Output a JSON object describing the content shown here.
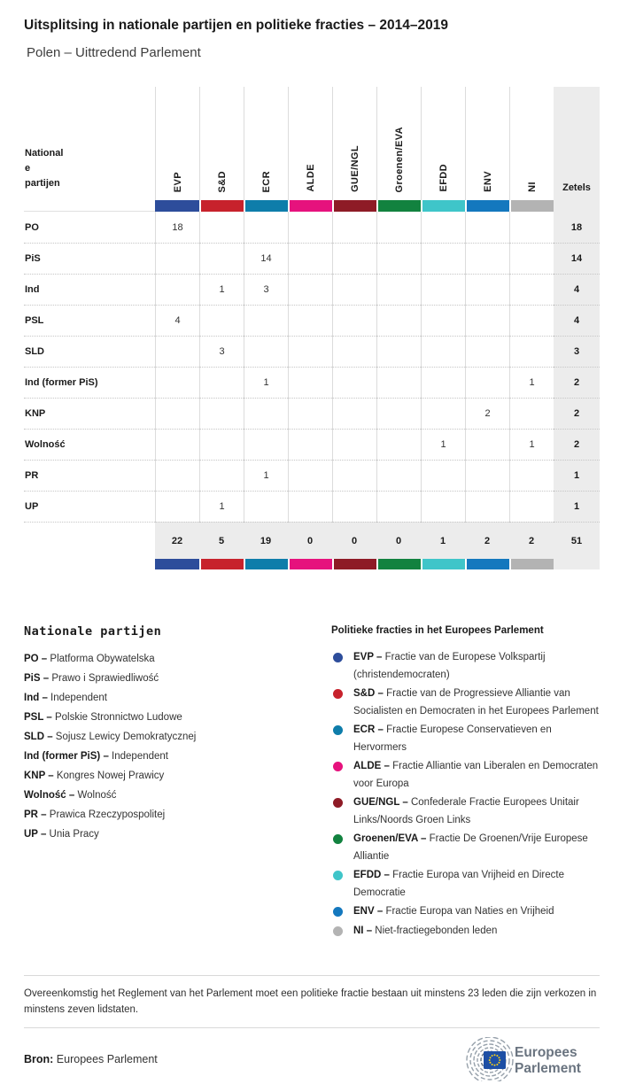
{
  "title": "Uitsplitsing in nationale partijen en politieke fracties – 2014–2019",
  "subtitle": "Polen – Uittredend Parlement",
  "table": {
    "row_header": "National\ne\npartijen",
    "seats_header": "Zetels"
  },
  "chart_data": {
    "type": "table",
    "title": "Uitsplitsing in nationale partijen en politieke fracties – 2014–2019",
    "subtitle": "Polen – Uittredend Parlement",
    "group_columns": [
      {
        "label": "EVP",
        "color": "#2d4d9b"
      },
      {
        "label": "S&D",
        "color": "#c7222c"
      },
      {
        "label": "ECR",
        "color": "#0e7daa"
      },
      {
        "label": "ALDE",
        "color": "#e6127d"
      },
      {
        "label": "GUE/NGL",
        "color": "#8e1b26"
      },
      {
        "label": "Groenen/EVA",
        "color": "#12823f"
      },
      {
        "label": "EFDD",
        "color": "#3fc5c9"
      },
      {
        "label": "ENV",
        "color": "#1478be"
      },
      {
        "label": "NI",
        "color": "#b3b3b3"
      }
    ],
    "seats_column": "Zetels",
    "rows": [
      {
        "party": "PO",
        "values": [
          18,
          "",
          "",
          "",
          "",
          "",
          "",
          "",
          ""
        ],
        "seats": 18
      },
      {
        "party": "PiS",
        "values": [
          "",
          "",
          14,
          "",
          "",
          "",
          "",
          "",
          ""
        ],
        "seats": 14
      },
      {
        "party": "Ind",
        "values": [
          "",
          1,
          3,
          "",
          "",
          "",
          "",
          "",
          ""
        ],
        "seats": 4
      },
      {
        "party": "PSL",
        "values": [
          4,
          "",
          "",
          "",
          "",
          "",
          "",
          "",
          ""
        ],
        "seats": 4
      },
      {
        "party": "SLD",
        "values": [
          "",
          3,
          "",
          "",
          "",
          "",
          "",
          "",
          ""
        ],
        "seats": 3
      },
      {
        "party": "Ind (former PiS)",
        "values": [
          "",
          "",
          1,
          "",
          "",
          "",
          "",
          "",
          1
        ],
        "seats": 2
      },
      {
        "party": "KNP",
        "values": [
          "",
          "",
          "",
          "",
          "",
          "",
          "",
          2,
          ""
        ],
        "seats": 2
      },
      {
        "party": "Wolność",
        "values": [
          "",
          "",
          "",
          "",
          "",
          "",
          1,
          "",
          1
        ],
        "seats": 2
      },
      {
        "party": "PR",
        "values": [
          "",
          "",
          1,
          "",
          "",
          "",
          "",
          "",
          ""
        ],
        "seats": 1
      },
      {
        "party": "UP",
        "values": [
          "",
          1,
          "",
          "",
          "",
          "",
          "",
          "",
          ""
        ],
        "seats": 1
      }
    ],
    "totals": {
      "values": [
        22,
        5,
        19,
        0,
        0,
        0,
        1,
        2,
        2
      ],
      "seats": 51
    }
  },
  "legend_parties": {
    "heading": "Nationale partijen",
    "items": [
      {
        "abbr": "PO –",
        "name": "Platforma Obywatelska"
      },
      {
        "abbr": "PiS –",
        "name": "Prawo i Sprawiedliwość"
      },
      {
        "abbr": "Ind –",
        "name": "Independent"
      },
      {
        "abbr": "PSL –",
        "name": "Polskie Stronnictwo Ludowe"
      },
      {
        "abbr": "SLD –",
        "name": "Sojusz Lewicy Demokratycznej"
      },
      {
        "abbr": "Ind (former PiS) –",
        "name": "Independent"
      },
      {
        "abbr": "KNP –",
        "name": "Kongres Nowej Prawicy"
      },
      {
        "abbr": "Wolność –",
        "name": "Wolność"
      },
      {
        "abbr": "PR –",
        "name": "Prawica Rzeczypospolitej"
      },
      {
        "abbr": "UP –",
        "name": "Unia Pracy"
      }
    ]
  },
  "legend_groups": {
    "heading": "Politieke fracties in het Europees Parlement",
    "items": [
      {
        "abbr": "EVP –",
        "name": "Fractie van de Europese Volkspartij (christendemocraten)",
        "color": "#2d4d9b"
      },
      {
        "abbr": "S&D –",
        "name": "Fractie van de Progressieve Alliantie van Socialisten en Democraten in het Europees Parlement",
        "color": "#c7222c"
      },
      {
        "abbr": "ECR –",
        "name": "Fractie Europese Conservatieven en Hervormers",
        "color": "#0e7daa"
      },
      {
        "abbr": "ALDE –",
        "name": "Fractie Alliantie van Liberalen en Democraten voor Europa",
        "color": "#e6127d"
      },
      {
        "abbr": "GUE/NGL –",
        "name": "Confederale Fractie Europees Unitair Links/Noords Groen Links",
        "color": "#8e1b26"
      },
      {
        "abbr": "Groenen/EVA –",
        "name": "Fractie De Groenen/Vrije Europese Alliantie",
        "color": "#12823f"
      },
      {
        "abbr": "EFDD –",
        "name": "Fractie Europa van Vrijheid en Directe Democratie",
        "color": "#3fc5c9"
      },
      {
        "abbr": "ENV –",
        "name": "Fractie Europa van Naties en Vrijheid",
        "color": "#1478be"
      },
      {
        "abbr": "NI –",
        "name": "Niet-fractiegebonden leden",
        "color": "#b3b3b3"
      }
    ]
  },
  "footnote": "Overeenkomstig het Reglement van het Parlement moet een politieke fractie bestaan uit minstens 23 leden die zijn verkozen in minstens zeven lidstaten.",
  "source": {
    "label": "Bron:",
    "value": " Europees Parlement"
  },
  "logo": {
    "line1": "Europees",
    "line2": "Parlement",
    "flag_color": "#1d4fa5",
    "star_color": "#f7d117",
    "text_color": "#6a7480"
  }
}
